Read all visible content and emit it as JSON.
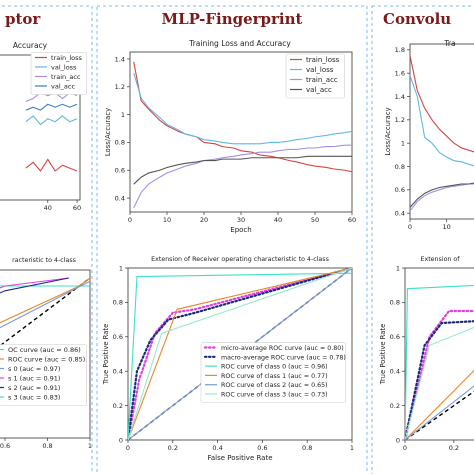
{
  "panels": {
    "left_title": "ptor",
    "center_title": "MLP-Fingerprint",
    "right_title": "Convolu"
  },
  "chart_data": [
    {
      "id": "left-training",
      "type": "line",
      "title": "Accuracy",
      "xlabel": "",
      "ylabel": "",
      "xticks": [
        40,
        60
      ],
      "legend": [
        "train_loss",
        "val_loss",
        "train_acc",
        "val_acc"
      ],
      "legend_position": "top-right",
      "series": [
        {
          "name": "val_acc",
          "color": "#3d7dbf",
          "x": [
            25,
            30,
            35,
            40,
            45,
            50,
            55,
            60
          ],
          "y": [
            0.76,
            0.77,
            0.76,
            0.78,
            0.77,
            0.78,
            0.77,
            0.78
          ]
        },
        {
          "name": "train_acc",
          "color": "#a68ee6",
          "x": [
            25,
            30,
            35,
            40,
            45,
            50,
            55,
            60
          ],
          "y": [
            0.79,
            0.8,
            0.82,
            0.81,
            0.82,
            0.8,
            0.82,
            0.81
          ]
        },
        {
          "name": "val_loss",
          "color": "#5fb8e6",
          "x": [
            25,
            30,
            35,
            40,
            45,
            50,
            55,
            60
          ],
          "y": [
            0.72,
            0.74,
            0.71,
            0.73,
            0.72,
            0.74,
            0.72,
            0.73
          ]
        },
        {
          "name": "train_loss",
          "color": "#d64545",
          "x": [
            25,
            30,
            35,
            40,
            45,
            50,
            55,
            60
          ],
          "y": [
            0.56,
            0.58,
            0.55,
            0.59,
            0.55,
            0.57,
            0.56,
            0.55
          ]
        }
      ]
    },
    {
      "id": "center-training",
      "type": "line",
      "title": "Training Loss and Accuracy",
      "xlabel": "Epoch",
      "ylabel": "Loss/Accuracy",
      "xlim": [
        0,
        60
      ],
      "ylim": [
        0.3,
        1.45
      ],
      "xticks": [
        0,
        10,
        20,
        30,
        40,
        50,
        60
      ],
      "yticks": [
        0.4,
        0.6,
        0.8,
        1.0,
        1.2,
        1.4
      ],
      "legend_position": "top-right",
      "series": [
        {
          "name": "train_loss",
          "color": "#d64545",
          "x": [
            1,
            3,
            5,
            8,
            10,
            13,
            15,
            18,
            20,
            23,
            25,
            28,
            30,
            33,
            35,
            38,
            40,
            43,
            45,
            48,
            50,
            53,
            55,
            58,
            60
          ],
          "y": [
            1.38,
            1.1,
            1.04,
            0.96,
            0.92,
            0.88,
            0.86,
            0.84,
            0.8,
            0.79,
            0.77,
            0.76,
            0.74,
            0.73,
            0.71,
            0.7,
            0.69,
            0.67,
            0.66,
            0.64,
            0.63,
            0.62,
            0.61,
            0.6,
            0.59
          ]
        },
        {
          "name": "val_loss",
          "color": "#5fb8e6",
          "x": [
            1,
            3,
            5,
            8,
            10,
            13,
            15,
            18,
            20,
            23,
            25,
            28,
            30,
            33,
            35,
            38,
            40,
            43,
            45,
            48,
            50,
            53,
            55,
            58,
            60
          ],
          "y": [
            1.3,
            1.12,
            1.05,
            0.98,
            0.93,
            0.89,
            0.86,
            0.84,
            0.82,
            0.81,
            0.8,
            0.79,
            0.79,
            0.79,
            0.79,
            0.8,
            0.8,
            0.81,
            0.82,
            0.83,
            0.84,
            0.85,
            0.86,
            0.87,
            0.88
          ]
        },
        {
          "name": "train_acc",
          "color": "#a68ee6",
          "x": [
            1,
            3,
            5,
            8,
            10,
            13,
            15,
            18,
            20,
            23,
            25,
            28,
            30,
            33,
            35,
            38,
            40,
            43,
            45,
            48,
            50,
            53,
            55,
            58,
            60
          ],
          "y": [
            0.33,
            0.44,
            0.5,
            0.55,
            0.58,
            0.61,
            0.63,
            0.65,
            0.67,
            0.68,
            0.69,
            0.7,
            0.71,
            0.72,
            0.73,
            0.73,
            0.74,
            0.75,
            0.75,
            0.76,
            0.76,
            0.77,
            0.77,
            0.78,
            0.78
          ]
        },
        {
          "name": "val_acc",
          "color": "#555555",
          "x": [
            1,
            3,
            5,
            8,
            10,
            13,
            15,
            18,
            20,
            23,
            25,
            28,
            30,
            33,
            35,
            38,
            40,
            43,
            45,
            48,
            50,
            53,
            55,
            58,
            60
          ],
          "y": [
            0.5,
            0.55,
            0.58,
            0.6,
            0.62,
            0.64,
            0.65,
            0.66,
            0.67,
            0.67,
            0.68,
            0.68,
            0.68,
            0.69,
            0.69,
            0.69,
            0.69,
            0.69,
            0.69,
            0.7,
            0.7,
            0.7,
            0.7,
            0.7,
            0.7
          ]
        }
      ]
    },
    {
      "id": "right-training",
      "type": "line",
      "title": "Tra",
      "xlabel": "",
      "ylabel": "Loss/Accuracy",
      "xlim": [
        0,
        30
      ],
      "ylim": [
        0.35,
        1.85
      ],
      "xticks": [
        0,
        10,
        20
      ],
      "yticks": [
        0.4,
        0.6,
        0.8,
        1.0,
        1.2,
        1.4,
        1.6,
        1.8
      ],
      "series": [
        {
          "name": "train_loss",
          "color": "#d64545",
          "x": [
            0,
            2,
            4,
            6,
            8,
            10,
            12,
            14,
            16,
            18,
            20,
            22,
            24,
            26,
            28
          ],
          "y": [
            1.75,
            1.45,
            1.3,
            1.2,
            1.12,
            1.06,
            1.0,
            0.96,
            0.94,
            0.92,
            0.9,
            0.89,
            0.88,
            0.87,
            0.87
          ]
        },
        {
          "name": "val_loss",
          "color": "#5fb8e6",
          "x": [
            0,
            2,
            4,
            6,
            8,
            10,
            12,
            14,
            16,
            18,
            20,
            22,
            24,
            26,
            28
          ],
          "y": [
            1.58,
            1.4,
            1.05,
            1.0,
            0.92,
            0.88,
            0.85,
            0.84,
            0.82,
            0.8,
            0.8,
            0.79,
            0.78,
            0.78,
            0.77
          ]
        },
        {
          "name": "train_acc",
          "color": "#a68ee6",
          "x": [
            0,
            2,
            4,
            6,
            8,
            10,
            12,
            14,
            16,
            18,
            20,
            22,
            24,
            26,
            28
          ],
          "y": [
            0.42,
            0.5,
            0.55,
            0.58,
            0.6,
            0.62,
            0.63,
            0.64,
            0.65,
            0.65,
            0.66,
            0.66,
            0.66,
            0.67,
            0.67
          ]
        },
        {
          "name": "val_acc",
          "color": "#555555",
          "x": [
            0,
            2,
            4,
            6,
            8,
            10,
            12,
            14,
            16,
            18,
            20,
            22,
            24,
            26,
            28
          ],
          "y": [
            0.45,
            0.52,
            0.57,
            0.6,
            0.62,
            0.63,
            0.64,
            0.65,
            0.65,
            0.66,
            0.66,
            0.66,
            0.67,
            0.67,
            0.67
          ]
        }
      ]
    },
    {
      "id": "left-roc",
      "type": "line",
      "title": "racteristic to 4-class",
      "xlabel": "",
      "ylabel": "",
      "xticks": [
        0.6,
        0.8,
        1.0
      ],
      "legend": [
        "OC curve (auc = 0.86)",
        "ROC curve (auc = 0.85)",
        "s 0 (auc = 0.97)",
        "s 1 (auc = 0.91)",
        "s 2 (auc = 0.91)",
        "s 3 (auc = 0.83)"
      ],
      "series": [
        {
          "name": "class 0",
          "color": "#3ee0c8",
          "x": [
            0.3,
            1.0
          ],
          "y": [
            0.95,
            0.95
          ]
        },
        {
          "name": "class 1",
          "color": "#e8892a",
          "x": [
            0.3,
            0.95,
            1.0
          ],
          "y": [
            0.55,
            0.95,
            1.0
          ]
        },
        {
          "name": "class 2",
          "color": "#7b9bd8",
          "x": [
            0.3,
            1.0
          ],
          "y": [
            0.5,
            0.98
          ]
        },
        {
          "name": "micro",
          "color": "#e040e0",
          "x": [
            0.3,
            0.6,
            0.9
          ],
          "y": [
            0.8,
            0.95,
            1.0
          ]
        },
        {
          "name": "macro",
          "color": "#1a2a80",
          "x": [
            0.3,
            0.6,
            0.9
          ],
          "y": [
            0.75,
            0.92,
            1.0
          ]
        }
      ]
    },
    {
      "id": "center-roc",
      "type": "line",
      "title": "Extension of Receiver operating characteristic to 4-class",
      "xlabel": "False Positive Rate",
      "ylabel": "True Positive Rate",
      "xlim": [
        0,
        1
      ],
      "ylim": [
        0,
        1
      ],
      "xticks": [
        0.0,
        0.2,
        0.4,
        0.6,
        0.8,
        1.0
      ],
      "yticks": [
        0.0,
        0.2,
        0.4,
        0.6,
        0.8,
        1.0
      ],
      "legend": [
        "micro-average ROC curve (auc = 0.80)",
        "macro-average ROC curve (auc = 0.78)",
        "ROC curve of class 0 (auc = 0.96)",
        "ROC curve of class 1 (auc = 0.77)",
        "ROC curve of class 2 (auc = 0.65)",
        "ROC curve of class 3 (auc = 0.73)"
      ],
      "series": [
        {
          "name": "micro-average ROC curve (auc = 0.80)",
          "color": "#e040e0",
          "dashed": "dot",
          "x": [
            0,
            0.05,
            0.12,
            0.2,
            0.3,
            1.0
          ],
          "y": [
            0,
            0.35,
            0.62,
            0.74,
            0.76,
            1.0
          ]
        },
        {
          "name": "macro-average ROC curve (auc = 0.78)",
          "color": "#1a2a80",
          "dashed": "dot",
          "x": [
            0,
            0.04,
            0.1,
            0.18,
            0.3,
            1.0
          ],
          "y": [
            0,
            0.4,
            0.58,
            0.7,
            0.74,
            1.0
          ]
        },
        {
          "name": "ROC curve of class 0 (auc = 0.96)",
          "color": "#3ee0c8",
          "x": [
            0,
            0.04,
            1.0
          ],
          "y": [
            0,
            0.95,
            0.97
          ]
        },
        {
          "name": "ROC curve of class 1 (auc = 0.77)",
          "color": "#e8892a",
          "x": [
            0,
            0.22,
            1.0
          ],
          "y": [
            0,
            0.76,
            1.0
          ]
        },
        {
          "name": "ROC curve of class 2 (auc = 0.65)",
          "color": "#7b9bd8",
          "x": [
            0,
            1.0
          ],
          "y": [
            0,
            1.0
          ],
          "offset": 0.3
        },
        {
          "name": "ROC curve of class 3 (auc = 0.73)",
          "color": "#9be8cc",
          "x": [
            0,
            0.15,
            1.0
          ],
          "y": [
            0,
            0.62,
            1.0
          ]
        }
      ]
    },
    {
      "id": "right-roc",
      "type": "line",
      "title": "Extension of",
      "xlabel": "",
      "ylabel": "True Positive Rate",
      "xlim": [
        0,
        0.45
      ],
      "ylim": [
        0,
        1
      ],
      "xticks": [
        0.0,
        0.2,
        0.4
      ],
      "yticks": [
        0.0,
        0.2,
        0.4,
        0.6,
        0.8,
        1.0
      ],
      "series": [
        {
          "name": "class 0",
          "color": "#3ee0c8",
          "x": [
            0,
            0.01,
            0.45
          ],
          "y": [
            0,
            0.88,
            0.91
          ]
        },
        {
          "name": "micro",
          "color": "#e040e0",
          "dashed": "dot",
          "x": [
            0,
            0.1,
            0.18,
            0.4
          ],
          "y": [
            0,
            0.6,
            0.75,
            0.75
          ]
        },
        {
          "name": "macro",
          "color": "#1a2a80",
          "dashed": "dot",
          "x": [
            0,
            0.08,
            0.15,
            0.4
          ],
          "y": [
            0,
            0.55,
            0.68,
            0.7
          ]
        },
        {
          "name": "class 1",
          "color": "#e8892a",
          "x": [
            0,
            0.28,
            0.45
          ],
          "y": [
            0,
            0.4,
            0.85
          ]
        },
        {
          "name": "class 3",
          "color": "#9be8cc",
          "x": [
            0,
            0.1,
            0.45
          ],
          "y": [
            0,
            0.55,
            0.75
          ]
        },
        {
          "name": "class 2",
          "color": "#7b9bd8",
          "x": [
            0,
            0.45
          ],
          "y": [
            0,
            0.5
          ]
        }
      ]
    }
  ]
}
